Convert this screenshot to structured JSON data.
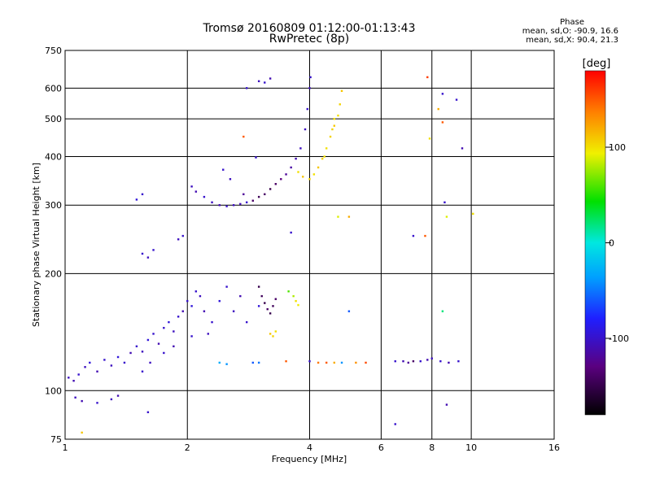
{
  "chart_data": {
    "type": "scatter",
    "title": "Tromsø 20160809 01:12:00-01:13:43",
    "subtitle": "RwPretec (8p)",
    "xlabel": "Frequency [MHz]",
    "ylabel": "Stationary phase Virtual Height [km]",
    "x_scale": "log",
    "y_scale": "log",
    "xlim": [
      1,
      16
    ],
    "ylim": [
      75,
      750
    ],
    "x_ticks": [
      1,
      2,
      4,
      6,
      8,
      10,
      16
    ],
    "y_ticks": [
      75,
      100,
      200,
      300,
      400,
      500,
      600,
      750
    ],
    "grid": true,
    "colorbar": {
      "label": "[deg]",
      "range": [
        -180,
        180
      ],
      "ticks": [
        100,
        0,
        -100
      ]
    },
    "phase_stats": {
      "heading": "Phase",
      "o_mode": "mean, sd,O: -90.9, 16.6",
      "x_mode": "mean, sd,X:  90.4, 21.3"
    },
    "series": [
      {
        "points": [
          [
            1.02,
            108,
            -105
          ],
          [
            1.05,
            106,
            -110
          ],
          [
            1.08,
            110,
            -100
          ],
          [
            1.12,
            115,
            -105
          ],
          [
            1.15,
            118,
            -95
          ],
          [
            1.2,
            112,
            -110
          ],
          [
            1.25,
            120,
            -100
          ],
          [
            1.3,
            116,
            -105
          ],
          [
            1.35,
            122,
            -95
          ],
          [
            1.4,
            118,
            -100
          ],
          [
            1.45,
            125,
            -110
          ],
          [
            1.5,
            130,
            -100
          ],
          [
            1.55,
            126,
            -105
          ],
          [
            1.6,
            135,
            -95
          ],
          [
            1.65,
            140,
            -100
          ],
          [
            1.7,
            132,
            -110
          ],
          [
            1.75,
            145,
            -100
          ],
          [
            1.8,
            150,
            -95
          ],
          [
            1.85,
            142,
            -105
          ],
          [
            1.9,
            155,
            -100
          ],
          [
            1.95,
            160,
            -110
          ],
          [
            2.0,
            170,
            -100
          ],
          [
            2.05,
            165,
            -95
          ],
          [
            2.1,
            180,
            -100
          ],
          [
            2.15,
            175,
            -105
          ],
          [
            2.2,
            160,
            -110
          ],
          [
            2.3,
            150,
            -100
          ],
          [
            2.4,
            170,
            -95
          ],
          [
            2.5,
            185,
            -100
          ],
          [
            2.6,
            160,
            -105
          ],
          [
            2.7,
            175,
            -110
          ],
          [
            2.8,
            150,
            -100
          ],
          [
            3.0,
            165,
            -95
          ],
          [
            1.06,
            96,
            -105
          ],
          [
            1.1,
            94,
            -110
          ],
          [
            1.2,
            93,
            -100
          ],
          [
            1.3,
            95,
            -105
          ],
          [
            1.35,
            97,
            -110
          ],
          [
            1.55,
            112,
            -100
          ],
          [
            1.62,
            118,
            -105
          ],
          [
            1.75,
            125,
            -100
          ],
          [
            1.85,
            130,
            -110
          ],
          [
            2.05,
            138,
            -100
          ],
          [
            2.25,
            140,
            -105
          ]
        ]
      },
      {
        "points": [
          [
            2.05,
            335,
            -105
          ],
          [
            2.1,
            325,
            -110
          ],
          [
            2.2,
            315,
            -100
          ],
          [
            2.3,
            305,
            -105
          ],
          [
            2.4,
            300,
            -110
          ],
          [
            2.5,
            298,
            -100
          ],
          [
            2.6,
            300,
            -105
          ],
          [
            2.7,
            302,
            -110
          ],
          [
            2.8,
            305,
            -100
          ],
          [
            2.9,
            308,
            -140
          ],
          [
            3.0,
            315,
            -145
          ],
          [
            3.1,
            320,
            -140
          ],
          [
            3.2,
            330,
            -150
          ],
          [
            3.3,
            340,
            -140
          ],
          [
            3.4,
            350,
            -130
          ],
          [
            3.5,
            360,
            -120
          ],
          [
            3.6,
            375,
            -115
          ],
          [
            3.7,
            395,
            -110
          ],
          [
            3.8,
            420,
            -105
          ],
          [
            3.9,
            470,
            -105
          ],
          [
            3.95,
            530,
            -100
          ],
          [
            4.0,
            600,
            -105
          ],
          [
            4.02,
            640,
            -100
          ],
          [
            2.45,
            370,
            -100
          ],
          [
            2.55,
            350,
            -105
          ],
          [
            2.75,
            320,
            -120
          ]
        ]
      },
      {
        "points": [
          [
            3.75,
            365,
            100
          ],
          [
            3.85,
            355,
            110
          ],
          [
            4.0,
            350,
            105
          ],
          [
            4.1,
            360,
            100
          ],
          [
            4.2,
            375,
            110
          ],
          [
            4.3,
            395,
            105
          ],
          [
            4.4,
            420,
            100
          ],
          [
            4.5,
            450,
            105
          ],
          [
            4.6,
            480,
            110
          ],
          [
            4.7,
            510,
            100
          ],
          [
            4.75,
            545,
            105
          ],
          [
            4.8,
            590,
            110
          ],
          [
            4.6,
            500,
            100
          ],
          [
            4.55,
            470,
            105
          ],
          [
            4.35,
            400,
            100
          ]
        ]
      },
      {
        "points": [
          [
            3.0,
            185,
            -150
          ],
          [
            3.05,
            175,
            -145
          ],
          [
            3.1,
            168,
            -150
          ],
          [
            3.15,
            162,
            -140
          ],
          [
            3.2,
            158,
            -150
          ],
          [
            3.25,
            165,
            -145
          ],
          [
            3.3,
            172,
            -140
          ]
        ]
      },
      {
        "points": [
          [
            3.55,
            180,
            60
          ],
          [
            3.65,
            175,
            80
          ],
          [
            3.7,
            170,
            100
          ],
          [
            3.75,
            166,
            95
          ],
          [
            3.2,
            140,
            110
          ],
          [
            3.25,
            138,
            105
          ],
          [
            3.3,
            142,
            100
          ]
        ]
      },
      {
        "points": [
          [
            2.4,
            118,
            -30
          ],
          [
            2.5,
            117,
            -40
          ],
          [
            2.9,
            118,
            -60
          ],
          [
            3.0,
            118,
            -50
          ],
          [
            3.5,
            119,
            150
          ],
          [
            4.0,
            119,
            -100
          ],
          [
            4.2,
            118,
            140
          ],
          [
            4.4,
            118,
            150
          ],
          [
            4.6,
            118,
            120
          ],
          [
            4.8,
            118,
            -40
          ],
          [
            5.2,
            118,
            130
          ],
          [
            5.5,
            118,
            155
          ],
          [
            6.5,
            119,
            -100
          ],
          [
            6.8,
            119,
            -110
          ],
          [
            7.0,
            118,
            -120
          ],
          [
            7.2,
            119,
            -140
          ],
          [
            7.5,
            119,
            -100
          ],
          [
            7.8,
            120,
            -110
          ],
          [
            8.0,
            121,
            -105
          ],
          [
            8.4,
            119,
            -100
          ],
          [
            8.8,
            118,
            -110
          ],
          [
            9.3,
            119,
            -100
          ]
        ]
      },
      {
        "points": [
          [
            1.55,
            320,
            -100
          ],
          [
            1.5,
            310,
            -95
          ],
          [
            1.55,
            225,
            -100
          ],
          [
            1.6,
            220,
            -105
          ],
          [
            1.65,
            230,
            -100
          ],
          [
            1.9,
            245,
            -105
          ],
          [
            1.95,
            250,
            -100
          ],
          [
            2.8,
            600,
            -100
          ],
          [
            3.0,
            625,
            -105
          ],
          [
            3.1,
            620,
            -100
          ],
          [
            3.2,
            635,
            -110
          ],
          [
            2.75,
            450,
            150
          ],
          [
            2.95,
            398,
            -100
          ],
          [
            3.6,
            255,
            -100
          ],
          [
            5.0,
            280,
            120
          ],
          [
            4.7,
            280,
            90
          ],
          [
            7.2,
            250,
            -100
          ],
          [
            7.7,
            250,
            150
          ],
          [
            7.8,
            640,
            160
          ],
          [
            7.9,
            445,
            100
          ],
          [
            8.3,
            530,
            120
          ],
          [
            8.5,
            490,
            150
          ],
          [
            8.5,
            580,
            -100
          ],
          [
            8.6,
            305,
            -100
          ],
          [
            8.7,
            280,
            90
          ],
          [
            9.2,
            560,
            -100
          ],
          [
            9.5,
            420,
            -110
          ],
          [
            10.1,
            285,
            100
          ],
          [
            8.5,
            160,
            20
          ],
          [
            8.7,
            92,
            -110
          ],
          [
            6.5,
            82,
            -100
          ],
          [
            5.0,
            160,
            -60
          ],
          [
            1.6,
            88,
            -100
          ],
          [
            1.1,
            78,
            110
          ]
        ]
      }
    ]
  }
}
